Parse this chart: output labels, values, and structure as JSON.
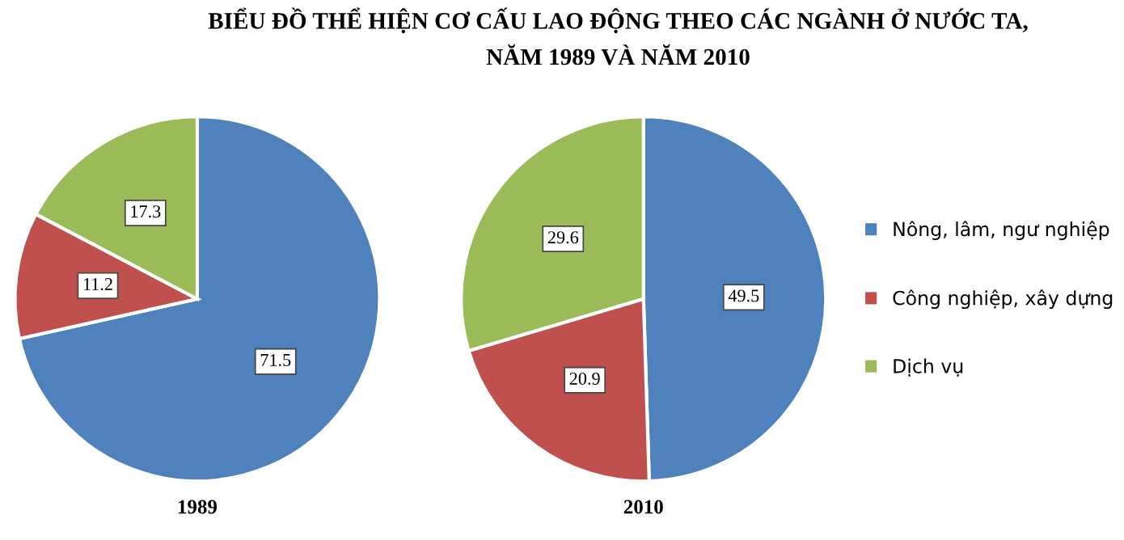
{
  "chart_data": [
    {
      "type": "pie",
      "title": "BIỂU ĐỒ THỂ HIỆN CƠ CẤU LAO ĐỘNG THEO CÁC NGÀNH Ở NƯỚC TA,\nNĂM 1989 VÀ NĂM 2010",
      "xlabel": "1989",
      "categories": [
        "Nông, lâm, ngư nghiệp",
        "Công nghiệp, xây dựng",
        "Dịch vụ"
      ],
      "values": [
        71.5,
        11.2,
        17.3
      ],
      "colors": [
        "#4f81bd",
        "#c0504d",
        "#9bbb59"
      ],
      "data_labels": true,
      "legend": "right"
    },
    {
      "type": "pie",
      "xlabel": "2010",
      "categories": [
        null,
        null,
        null
      ],
      "values": [
        49.5,
        20.9,
        29.6
      ],
      "colors": [
        "#4f81bd",
        "#c0504d",
        "#9bbb59"
      ],
      "data_labels": true
    }
  ]
}
